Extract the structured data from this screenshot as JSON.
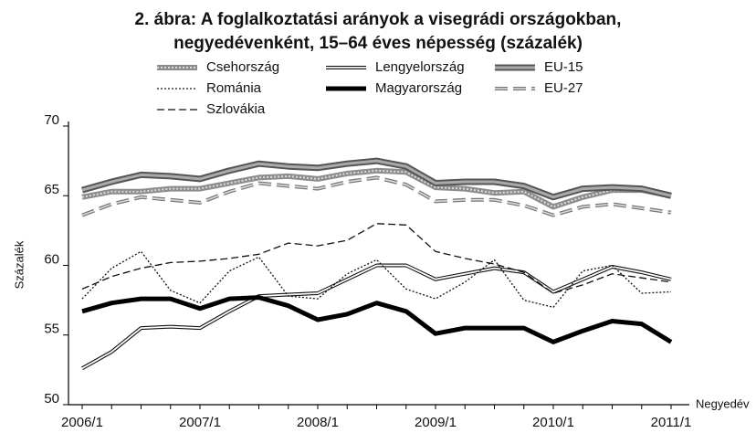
{
  "chart_data": {
    "type": "line",
    "title": [
      "2. ábra: A foglalkoztatási arányok a visegrádi országokban,",
      "negyedévenként, 15–64 éves népesség (százalék)"
    ],
    "y_label": "Százalék",
    "x_label": "Negyedév",
    "categories": [
      "2006/1",
      null,
      null,
      null,
      "2007/1",
      null,
      null,
      null,
      "2008/1",
      null,
      null,
      null,
      "2009/1",
      null,
      null,
      null,
      "2010/1",
      null,
      null,
      null,
      "2011/1"
    ],
    "ylim": [
      50,
      70
    ],
    "yticks": [
      50,
      55,
      60,
      65,
      70
    ],
    "series": [
      {
        "name": "Csehország",
        "color": "#8c8c8c",
        "style": "dotted-thick",
        "values": [
          64.9,
          65.3,
          65.3,
          65.5,
          65.5,
          65.9,
          66.3,
          66.4,
          66.2,
          66.6,
          66.8,
          66.7,
          65.6,
          65.5,
          65.2,
          65.3,
          64.2,
          64.9,
          65.4,
          65.4,
          65.0
        ]
      },
      {
        "name": "Lengyelország",
        "color": "#111111",
        "style": "double",
        "values": [
          52.6,
          53.8,
          55.5,
          55.6,
          55.5,
          56.7,
          57.8,
          57.9,
          58.0,
          59.0,
          60.0,
          60.0,
          59.0,
          59.4,
          59.8,
          59.5,
          58.1,
          59.0,
          59.9,
          59.5,
          59.0
        ]
      },
      {
        "name": "EU-15",
        "color": "#555555",
        "style": "double-gray",
        "values": [
          65.4,
          66.0,
          66.5,
          66.4,
          66.2,
          66.8,
          67.3,
          67.1,
          67.0,
          67.3,
          67.5,
          67.1,
          65.9,
          66.0,
          66.0,
          65.7,
          64.9,
          65.5,
          65.6,
          65.5,
          65.0
        ]
      },
      {
        "name": "Románia",
        "color": "#111111",
        "style": "dotted",
        "values": [
          57.6,
          59.8,
          61.0,
          58.2,
          57.3,
          59.6,
          60.6,
          57.8,
          57.6,
          59.4,
          60.4,
          58.3,
          57.6,
          58.8,
          60.4,
          57.5,
          57.0,
          59.6,
          60.0,
          58.0,
          58.1
        ]
      },
      {
        "name": "Magyarország",
        "color": "#000000",
        "style": "solid",
        "values": [
          56.7,
          57.3,
          57.6,
          57.6,
          56.9,
          57.6,
          57.7,
          57.1,
          56.1,
          56.5,
          57.3,
          56.7,
          55.1,
          55.5,
          55.5,
          55.5,
          54.5,
          55.3,
          56.0,
          55.8,
          54.5
        ]
      },
      {
        "name": "EU-27",
        "color": "#777777",
        "style": "dashed-thick",
        "values": [
          63.6,
          64.4,
          64.9,
          64.7,
          64.5,
          65.3,
          65.9,
          65.7,
          65.5,
          66.0,
          66.3,
          65.8,
          64.6,
          64.7,
          64.7,
          64.3,
          63.6,
          64.2,
          64.4,
          64.1,
          63.8
        ]
      },
      {
        "name": "Szlovákia",
        "color": "#111111",
        "style": "dashed",
        "values": [
          58.3,
          59.2,
          59.8,
          60.2,
          60.3,
          60.5,
          60.8,
          61.6,
          61.4,
          61.8,
          63.0,
          62.9,
          61.0,
          60.5,
          60.1,
          59.5,
          58.0,
          58.6,
          59.4,
          59.1,
          58.8
        ]
      }
    ]
  }
}
